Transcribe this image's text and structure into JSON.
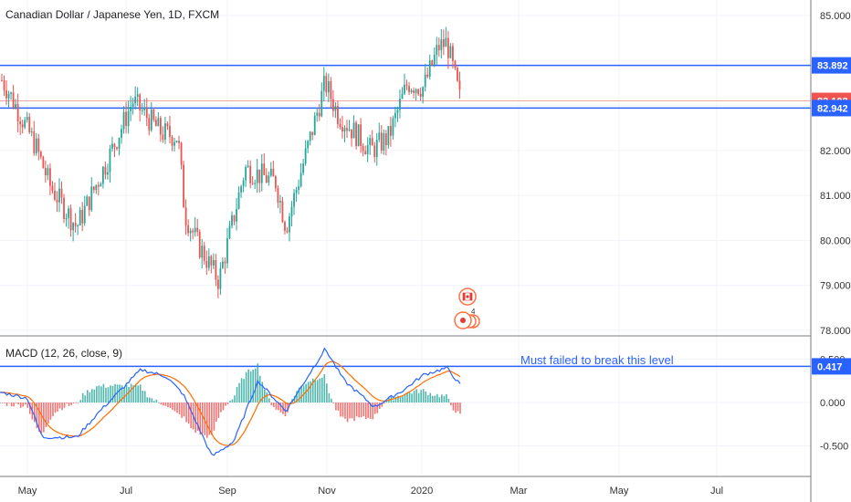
{
  "chart_data": [
    {
      "type": "candlestick",
      "title": "Canadian Dollar / Japanese Yen, 1D, FXCM",
      "y_ticks": [
        "85.000",
        "84.000",
        "83.000",
        "82.000",
        "81.000",
        "80.000",
        "79.000",
        "78.000"
      ],
      "ylim": [
        77.9,
        85.3
      ],
      "x_ticks": [
        "May",
        "Jul",
        "Sep",
        "Nov",
        "2020",
        "Mar",
        "May",
        "Jul"
      ],
      "horizontal_levels": [
        {
          "value": 83.892,
          "label": "83.892",
          "color": "#2962ff"
        },
        {
          "value": 82.942,
          "label": "82.942",
          "color": "#2962ff"
        }
      ],
      "last_price": {
        "value": 83.102,
        "label": "83.102",
        "color": "#ef5350"
      },
      "price_anchors": [
        {
          "date": "Apr 16",
          "close": 84.1
        },
        {
          "date": "Apr 24",
          "close": 83.3
        },
        {
          "date": "May 6",
          "close": 82.1
        },
        {
          "date": "May 15",
          "close": 81.2
        },
        {
          "date": "May 31",
          "close": 80.3
        },
        {
          "date": "Jun 20",
          "close": 81.8
        },
        {
          "date": "Jul 5",
          "close": 83.1
        },
        {
          "date": "Jul 22",
          "close": 82.4
        },
        {
          "date": "Aug 2",
          "close": 82.3
        },
        {
          "date": "Aug 6",
          "close": 80.6
        },
        {
          "date": "Aug 14",
          "close": 79.9
        },
        {
          "date": "Aug 26",
          "close": 79.1
        },
        {
          "date": "Sep 12",
          "close": 81.6
        },
        {
          "date": "Oct 1",
          "close": 81.3
        },
        {
          "date": "Oct 7",
          "close": 80.3
        },
        {
          "date": "Oct 30",
          "close": 83.5
        },
        {
          "date": "Nov 8",
          "close": 82.8
        },
        {
          "date": "Nov 29",
          "close": 82.0
        },
        {
          "date": "Dec 10",
          "close": 82.3
        },
        {
          "date": "Dec 22",
          "close": 83.5
        },
        {
          "date": "Jan 2",
          "close": 83.4
        },
        {
          "date": "Jan 11",
          "close": 84.3
        },
        {
          "date": "Jan 16",
          "close": 84.4
        },
        {
          "date": "Jan 24",
          "close": 83.1
        }
      ],
      "events": [
        {
          "label": "4"
        }
      ]
    },
    {
      "type": "macd",
      "title": "MACD (12, 26, close, 9)",
      "y_ticks": [
        "0.500",
        "0.000",
        "-0.500"
      ],
      "ylim": [
        -0.75,
        0.75
      ],
      "level": {
        "value": 0.417,
        "label": "0.417",
        "color": "#2962ff"
      },
      "annotation": "Must failed to break this level",
      "macd_anchors": [
        {
          "date": "Apr 16",
          "value": 0.15
        },
        {
          "date": "May 1",
          "value": 0.05
        },
        {
          "date": "May 10",
          "value": -0.4
        },
        {
          "date": "May 31",
          "value": -0.4
        },
        {
          "date": "Jun 15",
          "value": -0.1
        },
        {
          "date": "Jul 10",
          "value": 0.38
        },
        {
          "date": "Jul 25",
          "value": 0.3
        },
        {
          "date": "Aug 5",
          "value": 0.1
        },
        {
          "date": "Aug 22",
          "value": -0.62
        },
        {
          "date": "Sep 5",
          "value": -0.45
        },
        {
          "date": "Sep 20",
          "value": 0.25
        },
        {
          "date": "Oct 7",
          "value": -0.1
        },
        {
          "date": "Oct 30",
          "value": 0.62
        },
        {
          "date": "Nov 12",
          "value": 0.25
        },
        {
          "date": "Dec 1",
          "value": -0.05
        },
        {
          "date": "Dec 20",
          "value": 0.15
        },
        {
          "date": "Jan 2",
          "value": 0.32
        },
        {
          "date": "Jan 16",
          "value": 0.4
        },
        {
          "date": "Jan 24",
          "value": 0.2
        }
      ],
      "macd_color": "#2962ff",
      "signal_color": "#ff6d00",
      "hist_up_color": "#26a69a",
      "hist_down_color": "#ef5350"
    }
  ]
}
